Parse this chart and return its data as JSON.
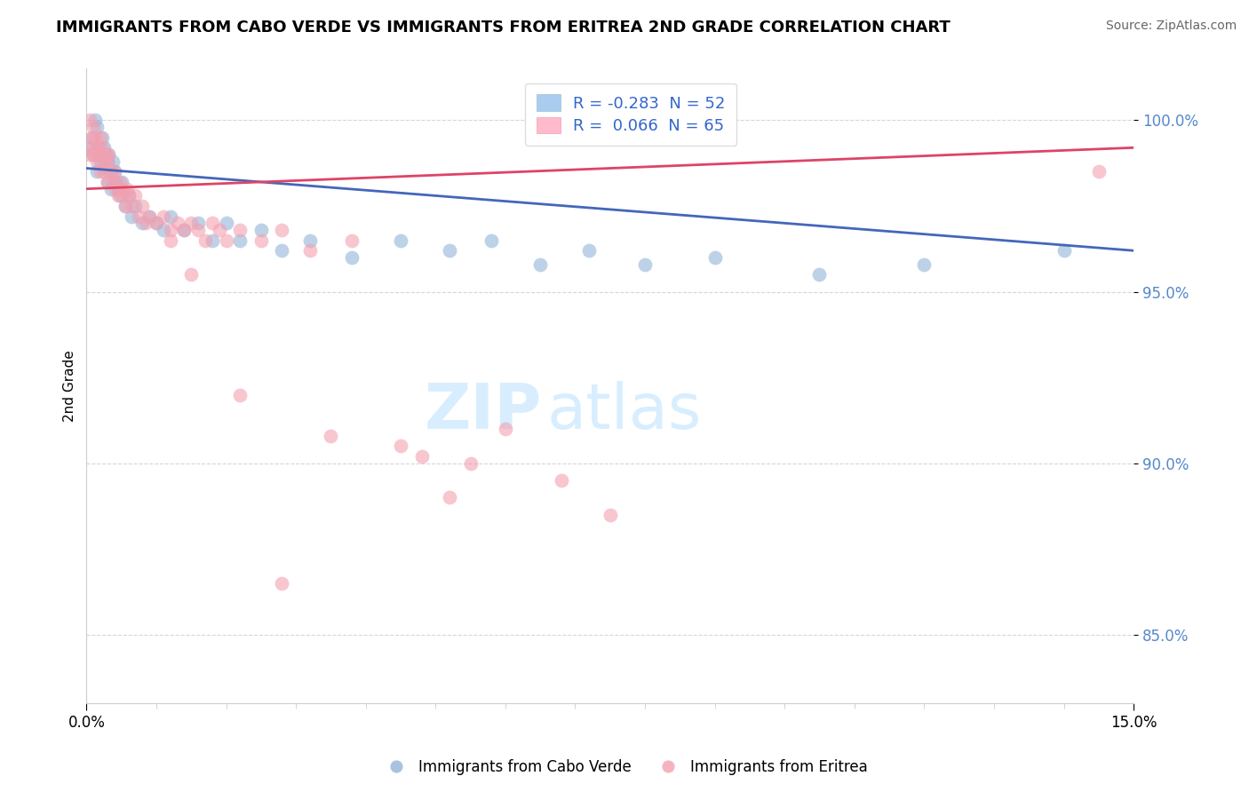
{
  "title": "IMMIGRANTS FROM CABO VERDE VS IMMIGRANTS FROM ERITREA 2ND GRADE CORRELATION CHART",
  "source": "Source: ZipAtlas.com",
  "ylabel": "2nd Grade",
  "xlim": [
    0.0,
    15.0
  ],
  "ylim": [
    83.0,
    101.5
  ],
  "yticks": [
    85.0,
    90.0,
    95.0,
    100.0
  ],
  "ytick_labels": [
    "85.0%",
    "90.0%",
    "95.0%",
    "100.0%"
  ],
  "legend_blue_R": "-0.283",
  "legend_blue_N": "52",
  "legend_pink_R": "0.066",
  "legend_pink_N": "65",
  "watermark_zip": "ZIP",
  "watermark_atlas": "atlas",
  "blue_color": "#92B4D7",
  "pink_color": "#F4A0B0",
  "blue_line_color": "#4466BB",
  "pink_line_color": "#DD4466",
  "blue_line_y0": 98.6,
  "blue_line_y1": 96.2,
  "pink_line_y0": 98.0,
  "pink_line_y1": 99.2,
  "cabo_verde_x": [
    0.05,
    0.08,
    0.1,
    0.12,
    0.15,
    0.15,
    0.18,
    0.2,
    0.2,
    0.22,
    0.25,
    0.25,
    0.28,
    0.3,
    0.3,
    0.32,
    0.35,
    0.35,
    0.38,
    0.4,
    0.42,
    0.45,
    0.48,
    0.5,
    0.55,
    0.6,
    0.65,
    0.7,
    0.8,
    0.9,
    1.0,
    1.1,
    1.2,
    1.4,
    1.6,
    1.8,
    2.0,
    2.2,
    2.5,
    2.8,
    3.2,
    3.8,
    4.5,
    5.2,
    5.8,
    6.5,
    7.2,
    8.0,
    9.0,
    10.5,
    12.0,
    14.0
  ],
  "cabo_verde_y": [
    99.2,
    99.5,
    99.0,
    100.0,
    99.8,
    98.5,
    99.2,
    99.0,
    98.8,
    99.5,
    99.2,
    98.6,
    99.0,
    98.8,
    98.2,
    99.0,
    98.5,
    98.0,
    98.8,
    98.5,
    98.2,
    98.0,
    97.8,
    98.2,
    97.5,
    97.8,
    97.2,
    97.5,
    97.0,
    97.2,
    97.0,
    96.8,
    97.2,
    96.8,
    97.0,
    96.5,
    97.0,
    96.5,
    96.8,
    96.2,
    96.5,
    96.0,
    96.5,
    96.2,
    96.5,
    95.8,
    96.2,
    95.8,
    96.0,
    95.5,
    95.8,
    96.2
  ],
  "eritrea_x": [
    0.03,
    0.05,
    0.07,
    0.08,
    0.1,
    0.1,
    0.12,
    0.15,
    0.15,
    0.18,
    0.2,
    0.2,
    0.22,
    0.25,
    0.25,
    0.28,
    0.3,
    0.3,
    0.32,
    0.35,
    0.38,
    0.4,
    0.42,
    0.45,
    0.48,
    0.5,
    0.52,
    0.55,
    0.58,
    0.6,
    0.65,
    0.7,
    0.75,
    0.8,
    0.85,
    0.9,
    1.0,
    1.1,
    1.2,
    1.3,
    1.4,
    1.5,
    1.6,
    1.7,
    1.8,
    1.9,
    2.0,
    2.2,
    2.5,
    2.8,
    3.2,
    3.8,
    4.5,
    5.5,
    6.0,
    6.8,
    7.5,
    2.2,
    3.5,
    4.8,
    1.2,
    2.8,
    5.2,
    14.5,
    1.5
  ],
  "eritrea_y": [
    99.0,
    100.0,
    99.5,
    99.2,
    99.8,
    99.0,
    99.5,
    99.2,
    98.8,
    99.0,
    99.5,
    98.5,
    99.2,
    98.8,
    98.5,
    99.0,
    98.8,
    98.2,
    99.0,
    98.5,
    98.2,
    98.5,
    98.0,
    97.8,
    98.2,
    98.0,
    97.8,
    97.5,
    98.0,
    97.8,
    97.5,
    97.8,
    97.2,
    97.5,
    97.0,
    97.2,
    97.0,
    97.2,
    96.8,
    97.0,
    96.8,
    97.0,
    96.8,
    96.5,
    97.0,
    96.8,
    96.5,
    96.8,
    96.5,
    96.8,
    96.2,
    96.5,
    90.5,
    90.0,
    91.0,
    89.5,
    88.5,
    92.0,
    90.8,
    90.2,
    96.5,
    86.5,
    89.0,
    98.5,
    95.5
  ]
}
